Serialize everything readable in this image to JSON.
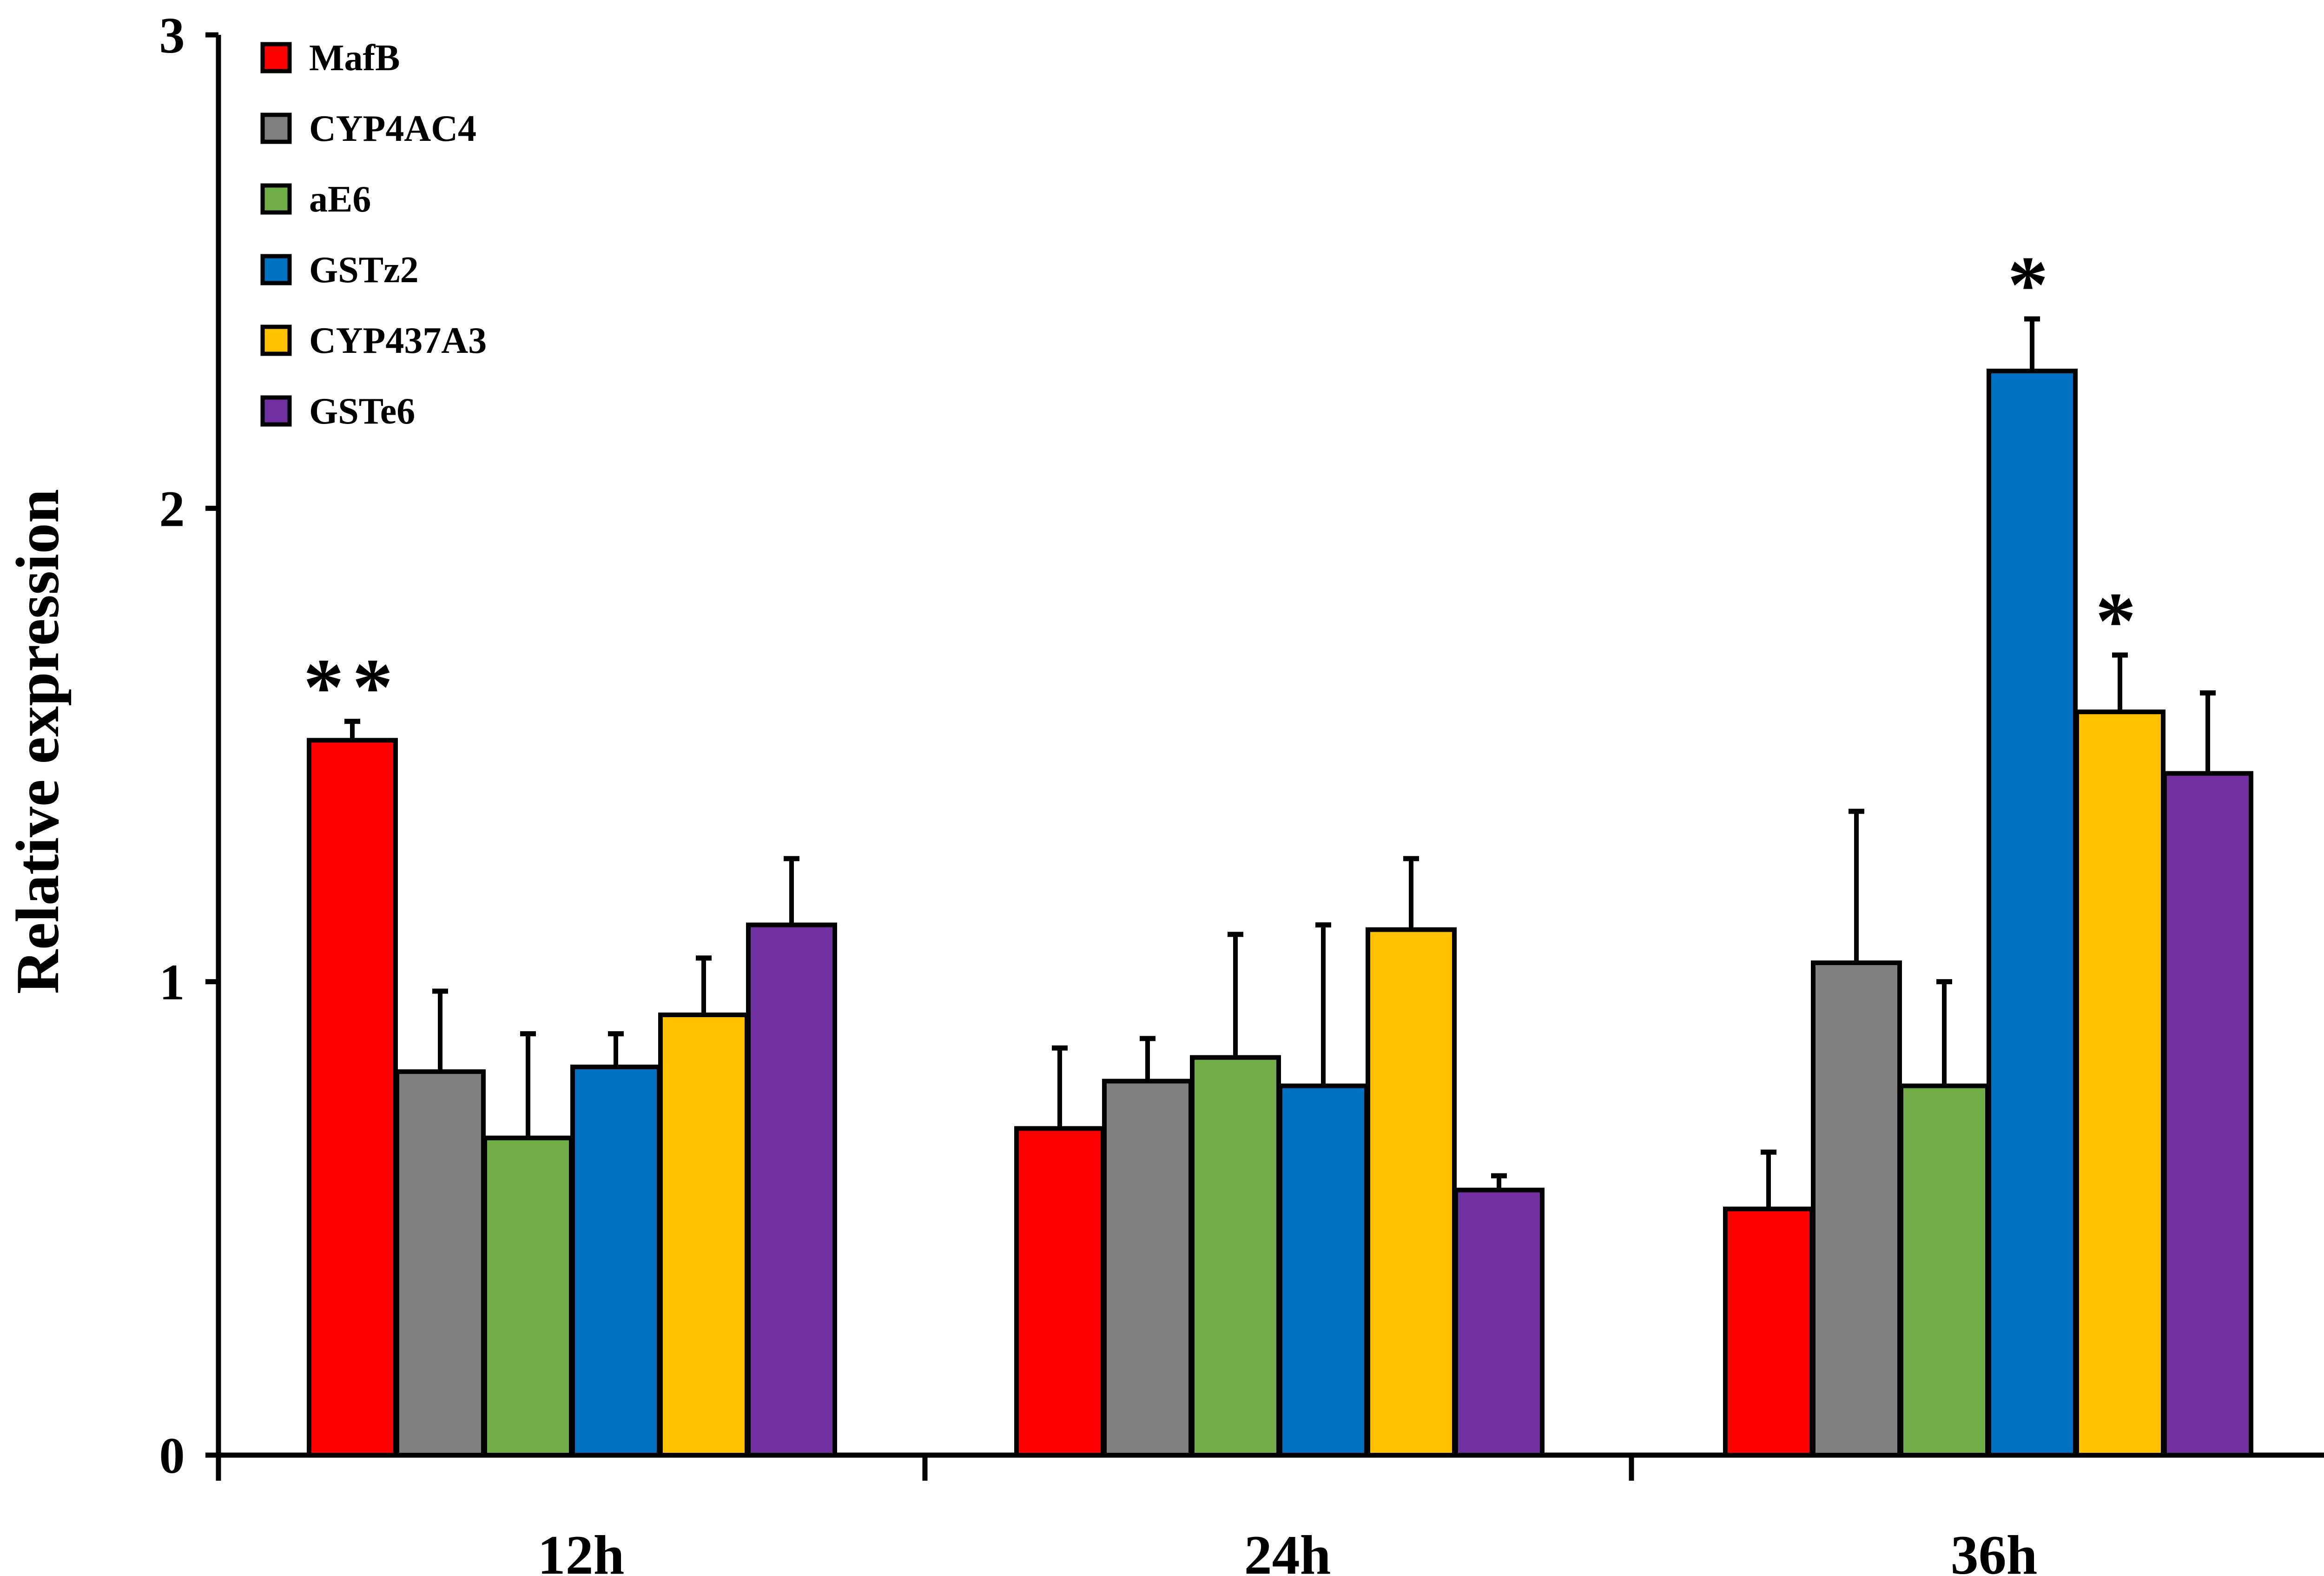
{
  "chart_data": {
    "type": "bar",
    "title": "",
    "xlabel": "",
    "ylabel": "Relative expression",
    "ylim": [
      0,
      3
    ],
    "yticks": [
      0,
      1,
      2,
      3
    ],
    "grid": false,
    "legend_position": "top-left",
    "categories": [
      "12h",
      "24h",
      "36h"
    ],
    "series": [
      {
        "name": "MafB",
        "color": "#ff0000",
        "values": [
          1.51,
          0.69,
          0.52
        ],
        "errors": [
          0.04,
          0.17,
          0.12
        ],
        "significance": [
          "**",
          "",
          ""
        ]
      },
      {
        "name": "CYP4AC4",
        "color": "#808080",
        "values": [
          0.81,
          0.79,
          1.04
        ],
        "errors": [
          0.17,
          0.09,
          0.32
        ],
        "significance": [
          "",
          "",
          ""
        ]
      },
      {
        "name": "aE6",
        "color": "#70ad47",
        "values": [
          0.67,
          0.84,
          0.78
        ],
        "errors": [
          0.22,
          0.26,
          0.22
        ],
        "significance": [
          "",
          "",
          ""
        ]
      },
      {
        "name": "GSTz2",
        "color": "#0070c0",
        "values": [
          0.82,
          0.78,
          2.29
        ],
        "errors": [
          0.07,
          0.34,
          0.11
        ],
        "significance": [
          "",
          "",
          "*"
        ]
      },
      {
        "name": "CYP437A3",
        "color": "#ffc000",
        "values": [
          0.93,
          1.11,
          1.57
        ],
        "errors": [
          0.12,
          0.15,
          0.12
        ],
        "significance": [
          "",
          "",
          "*"
        ]
      },
      {
        "name": "GSTe6",
        "color": "#7030a0",
        "values": [
          1.12,
          0.56,
          1.44
        ],
        "errors": [
          0.14,
          0.03,
          0.17
        ],
        "significance": [
          "",
          "",
          ""
        ]
      }
    ]
  }
}
